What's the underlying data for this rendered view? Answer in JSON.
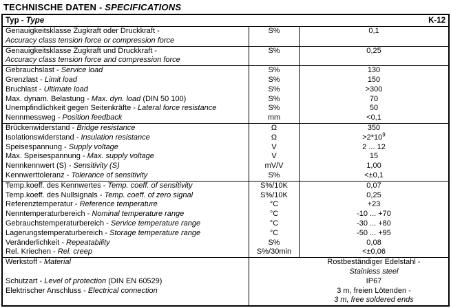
{
  "title": {
    "main": "TECHNISCHE DATEN",
    "sep": " - ",
    "sub": "SPECIFICATIONS"
  },
  "header": {
    "label_de": "Typ - ",
    "label_en": "Type",
    "value": "K-12"
  },
  "groups": [
    {
      "rows": [
        {
          "de": "Genauigkeitsklasse Zugkraft oder Druckkraft -",
          "en": "Accuracy class tension force or compression force",
          "suffix": "",
          "two_line": true,
          "unit": "S%",
          "value": "0,1"
        }
      ]
    },
    {
      "rows": [
        {
          "de": "Genauigkeitsklasse Zugkraft und Druckkraft -",
          "en": "Accuracy class tension force and compression force",
          "suffix": "",
          "two_line": true,
          "unit": "S%",
          "value": "0,25"
        }
      ]
    },
    {
      "rows": [
        {
          "de": "Gebrauchslast - ",
          "en": "Service load",
          "suffix": "",
          "unit": "S%",
          "value": "130"
        },
        {
          "de": "Grenzlast - ",
          "en": "Limit load",
          "suffix": "",
          "unit": "S%",
          "value": "150"
        },
        {
          "de": "Bruchlast - ",
          "en": "Ultimate load",
          "suffix": "",
          "unit": "S%",
          "value": ">300"
        },
        {
          "de": "Max. dynam. Belastung - ",
          "en": "Max. dyn. load",
          "suffix": " (DIN 50 100)",
          "unit": "S%",
          "value": "70"
        },
        {
          "de": "Unempfindlichkeit gegen Seitenkräfte - ",
          "en": "Lateral force resistance",
          "suffix": "",
          "unit": "S%",
          "value": "50"
        },
        {
          "de": "Nennmessweg - ",
          "en": "Position feedback",
          "suffix": "",
          "unit": "mm",
          "value": "<0,1"
        }
      ]
    },
    {
      "rows": [
        {
          "de": "Brückenwiderstand - ",
          "en": "Bridge resistance",
          "suffix": "",
          "unit": "Ω",
          "value": "350"
        },
        {
          "de": "Isolationswiderstand - ",
          "en": "Insulation resistance",
          "suffix": "",
          "unit": "Ω",
          "value": ">2*10",
          "value_sup": "9"
        },
        {
          "de": "Speisespannung - ",
          "en": "Supply voltage",
          "suffix": "",
          "unit": "V",
          "value": "2 ... 12"
        },
        {
          "de": "Max. Speisespannung - ",
          "en": "Max. supply voltage",
          "suffix": "",
          "unit": "V",
          "value": "15"
        },
        {
          "de": "Nennkennwert (S) - ",
          "en": "Sensitivity (S)",
          "suffix": "",
          "unit": "mV/V",
          "value": "1,00"
        },
        {
          "de": "Kennwerttoleranz - ",
          "en": "Tolerance of sensitivity",
          "suffix": "",
          "unit": "S%",
          "value": "<±0,1"
        }
      ]
    },
    {
      "rows": [
        {
          "de": "Temp.koeff. des Kennwertes - ",
          "en": "Temp. coeff. of sensitivity",
          "suffix": "",
          "unit": "S%/10K",
          "value": "0,07"
        },
        {
          "de": "Temp.koeff. des Nullsignals - ",
          "en": "Temp. coeff. of zero signal",
          "suffix": "",
          "unit": "S%/10K",
          "value": "0,25"
        },
        {
          "de": "Referenztemperatur - ",
          "en": "Reference temperature",
          "suffix": "",
          "unit": "°C",
          "value": "+23"
        },
        {
          "de": "Nenntemperaturbereich - ",
          "en": "Nominal temperature range",
          "suffix": "",
          "unit": "°C",
          "value": "-10 ... +70"
        },
        {
          "de": "Gebrauchstemperaturbereich - ",
          "en": "Service temperature range",
          "suffix": "",
          "unit": "°C",
          "value": "-30 ... +80"
        },
        {
          "de": "Lagerungstemperaturbereich - ",
          "en": "Storage temperature range",
          "suffix": "",
          "unit": "°C",
          "value": "-50 ... +95"
        },
        {
          "de": "Veränderlichkeit - ",
          "en": "Repeatability",
          "suffix": "",
          "unit": "S%",
          "value": "0,08"
        },
        {
          "de": "Rel. Kriechen - ",
          "en": "Rel. creep",
          "suffix": "",
          "unit": "S%/30min",
          "value": "<±0,06"
        }
      ]
    }
  ],
  "bottom": {
    "labels": [
      {
        "de": "Werkstoff - ",
        "en": "Material",
        "suffix": ""
      },
      {
        "de": "",
        "en": "",
        "suffix": ""
      },
      {
        "de": "Schutzart - ",
        "en": "Level of protection",
        "suffix": " (DIN  EN 60529)"
      },
      {
        "de": "Elektrischer Anschluss - ",
        "en": "Electrical connection",
        "suffix": ""
      }
    ],
    "values": [
      {
        "text": "Rostbeständiger Edelstahl -",
        "italic": false
      },
      {
        "text": "Stainless steel",
        "italic": true
      },
      {
        "text": "IP67",
        "italic": false
      },
      {
        "text": "3 m, freien Lötenden -",
        "italic": false
      },
      {
        "text": "3 m, free soldered ends",
        "italic": true
      }
    ]
  }
}
